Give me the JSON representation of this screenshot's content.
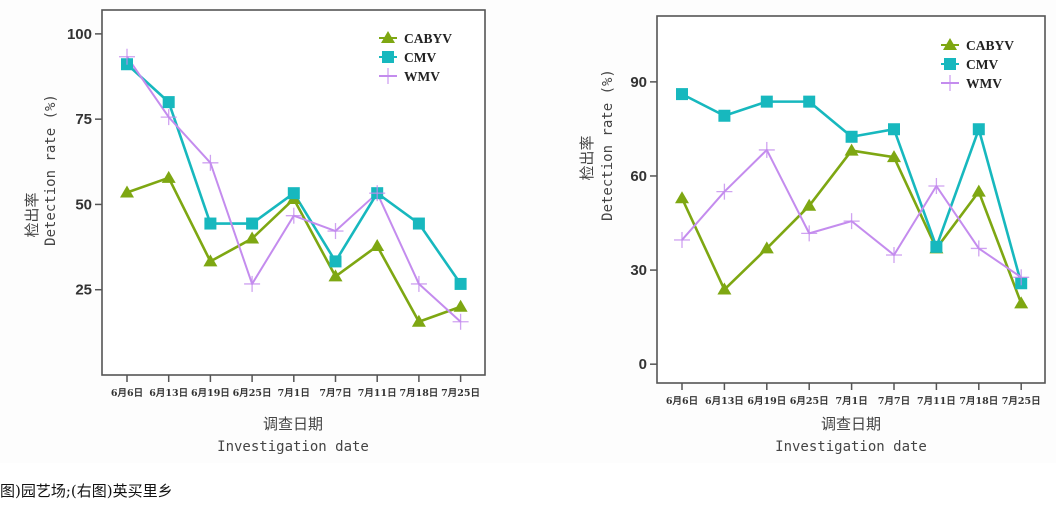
{
  "caption": "图)园艺场;(右图)英买里乡",
  "colors": {
    "CABYV": "#7ea712",
    "CMV": "#17b8be",
    "WMV": "#c48cee",
    "axis": "#444444"
  },
  "chart_data": [
    {
      "type": "line",
      "panel": "left",
      "title": "",
      "xlabel_cn": "调查日期",
      "xlabel": "Investigation date",
      "ylabel_cn": "检出率",
      "ylabel": "Detection rate (%)",
      "categories": [
        "6月6日",
        "6月13日",
        "6月19日",
        "6月25日",
        "7月1日",
        "7月7日",
        "7月11日",
        "7月18日",
        "7月25日"
      ],
      "ylim": [
        0,
        107
      ],
      "yticks": [
        25,
        50,
        75,
        100
      ],
      "grid": false,
      "legend": "top-right",
      "series": [
        {
          "name": "CABYV",
          "marker": "triangle",
          "values": [
            53.5,
            57.8,
            33.3,
            40.0,
            51.6,
            28.9,
            37.8,
            15.6,
            20.0
          ]
        },
        {
          "name": "CMV",
          "marker": "square",
          "values": [
            91.1,
            80.0,
            44.4,
            44.4,
            53.3,
            33.3,
            53.3,
            44.4,
            26.7
          ]
        },
        {
          "name": "WMV",
          "marker": "plus",
          "values": [
            93.3,
            75.6,
            62.2,
            26.7,
            46.7,
            42.2,
            53.3,
            26.7,
            15.6
          ]
        }
      ]
    },
    {
      "type": "line",
      "panel": "right",
      "title": "",
      "xlabel_cn": "调查日期",
      "xlabel": "Investigation date",
      "ylabel_cn": "检出率",
      "ylabel": "Detection rate (%)",
      "categories": [
        "6月6日",
        "6月13日",
        "6月19日",
        "6月25日",
        "7月1日",
        "7月7日",
        "7月11日",
        "7月18日",
        "7月25日"
      ],
      "ylim": [
        -6,
        111
      ],
      "yticks": [
        0,
        30,
        60,
        90
      ],
      "grid": false,
      "legend": "top-right",
      "series": [
        {
          "name": "CABYV",
          "marker": "triangle",
          "values": [
            52.9,
            23.8,
            36.9,
            50.5,
            68.1,
            66.0,
            36.9,
            55.0,
            19.4
          ]
        },
        {
          "name": "CMV",
          "marker": "square",
          "values": [
            86.1,
            79.2,
            83.7,
            83.7,
            72.5,
            74.9,
            37.4,
            74.9,
            25.8
          ]
        },
        {
          "name": "WMV",
          "marker": "plus",
          "values": [
            39.6,
            55.0,
            68.3,
            41.7,
            45.6,
            34.8,
            56.8,
            36.9,
            27.7
          ]
        }
      ]
    }
  ]
}
